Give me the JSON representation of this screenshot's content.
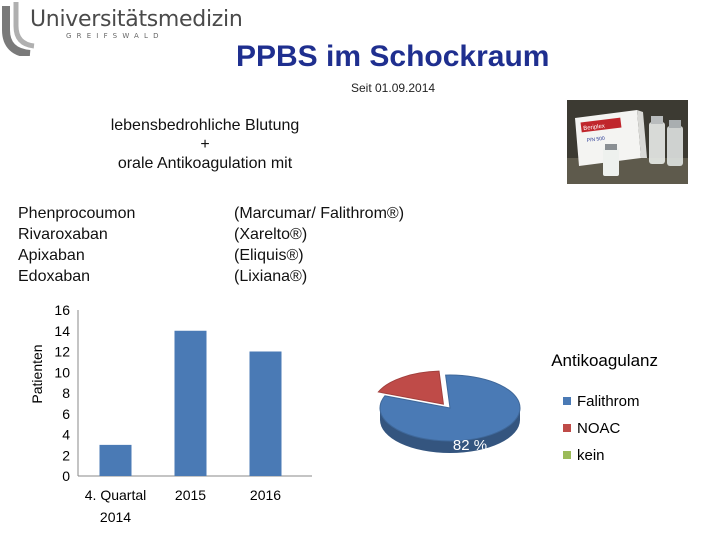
{
  "logo": {
    "name": "Universitätsmedizin",
    "location": "GREIFSWALD"
  },
  "slide": {
    "title": "PPBS im Schockraum",
    "subtitle": "Seit 01.09.2014",
    "intro_line1": "lebensbedrohliche Blutung",
    "intro_line2": "+",
    "intro_line3": "orale Antikoagulation mit",
    "drugs": [
      {
        "name": "Phenprocoumon",
        "brand": "(Marcumar/ Falithrom®)"
      },
      {
        "name": "Rivaroxaban",
        "brand": "(Xarelto®)"
      },
      {
        "name": "Apixaban",
        "brand": "(Eliquis®)"
      },
      {
        "name": "Edoxaban",
        "brand": "(Lixiana®)"
      }
    ]
  },
  "photo": {
    "box_text_1": "Beriplex",
    "box_text_2": "P/N 500"
  },
  "colors": {
    "title": "#1f2f8f",
    "bar": "#4a7ab5",
    "falithrom": "#4a7ab5",
    "noac": "#bf4b48",
    "kein": "#9bbb59"
  },
  "chart_data": [
    {
      "type": "bar",
      "categories": [
        [
          "4. Quartal",
          "2014"
        ],
        [
          "2015"
        ],
        [
          "2016"
        ]
      ],
      "series": [
        {
          "values": [
            3,
            14,
            12
          ]
        }
      ],
      "ylabel": "Patienten",
      "yticks": [
        0,
        2,
        4,
        6,
        8,
        10,
        12,
        14,
        16
      ],
      "ylim": [
        0,
        16
      ],
      "grid": false
    },
    {
      "type": "pie",
      "title": "Antikoagulanz",
      "labels": [
        "Falithrom",
        "NOAC",
        "kein"
      ],
      "values": [
        82,
        18,
        0
      ],
      "data_labels": [
        "82 %"
      ],
      "legend": "right"
    }
  ]
}
